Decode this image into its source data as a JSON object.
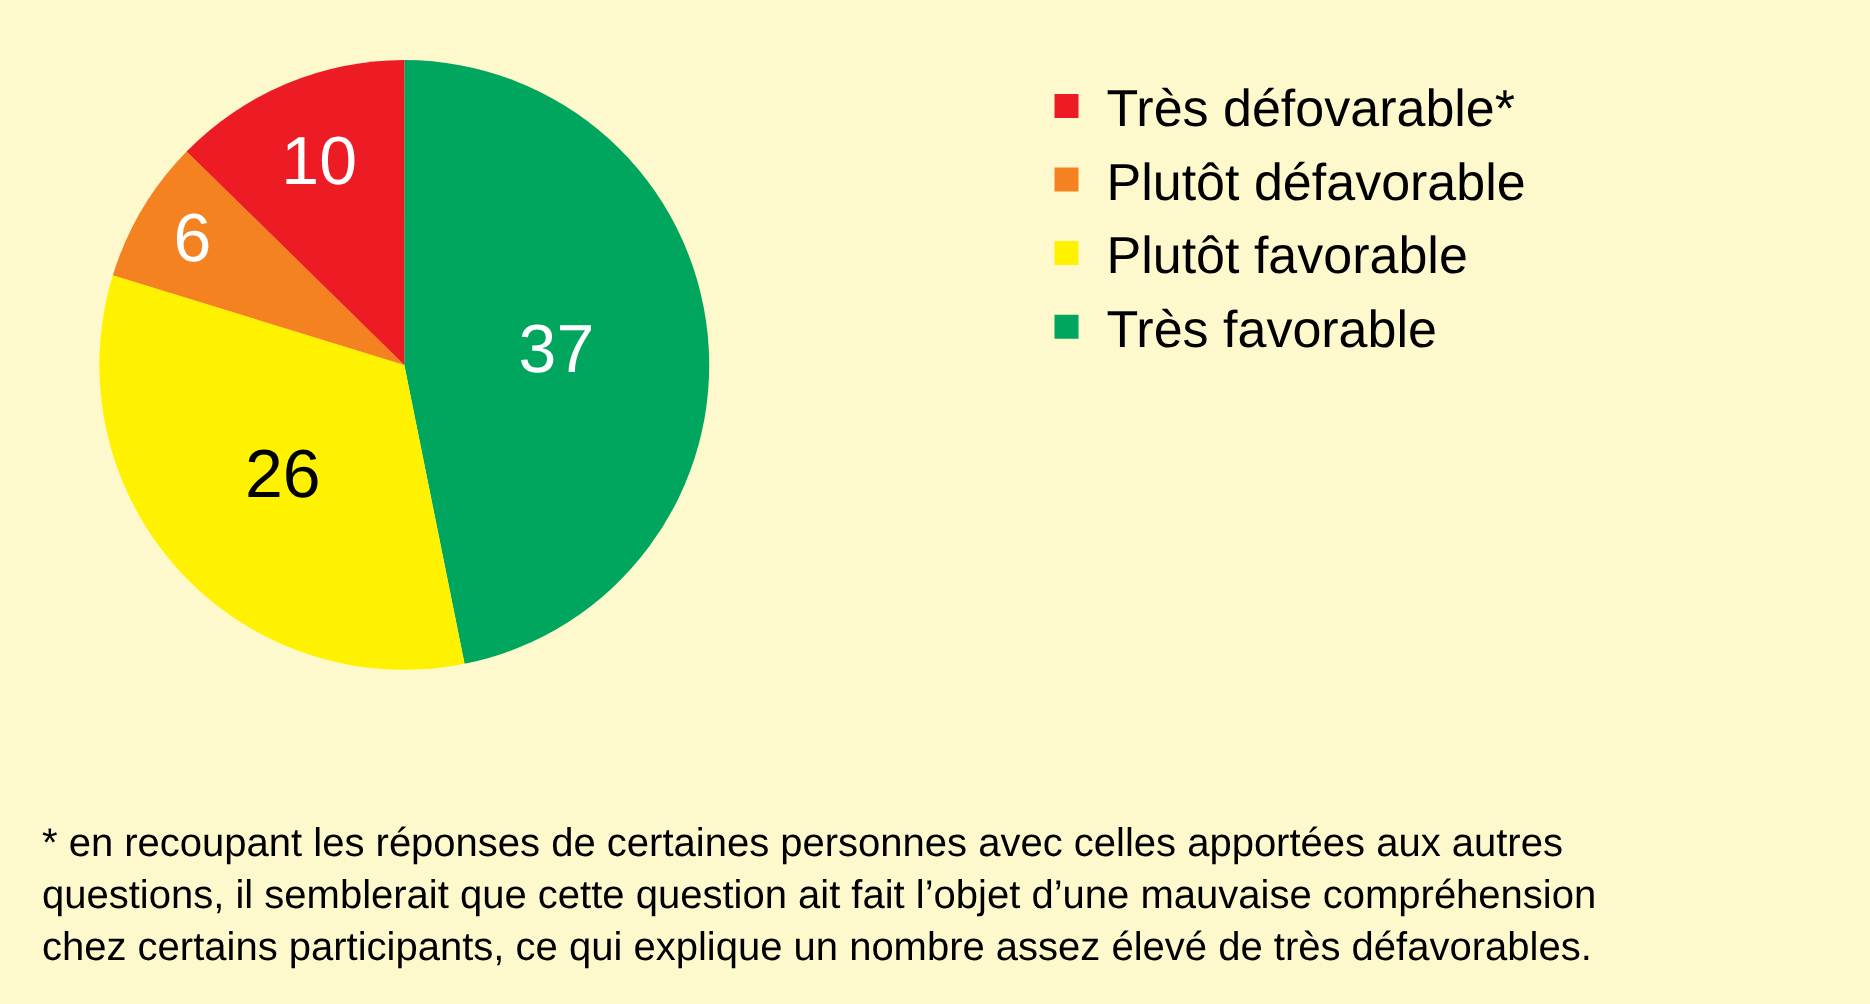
{
  "chart_data": {
    "type": "pie",
    "categories": [
      "Très défovarable*",
      "Plutôt défavorable",
      "Plutôt favorable",
      "Très favorable"
    ],
    "values": [
      10,
      6,
      26,
      37
    ],
    "colors": [
      "#ed1c24",
      "#f58220",
      "#fff200",
      "#00a65d"
    ],
    "data_labels": true,
    "legend": "right",
    "annotations": [
      "* en recoupant les réponses de certaines personnes avec celles apportées aux autres questions, il semblerait que cette question ait fait l’objet d’une mauvaise compréhension chez certains participants, ce qui explique un nombre assez élevé de très défavorables."
    ]
  }
}
